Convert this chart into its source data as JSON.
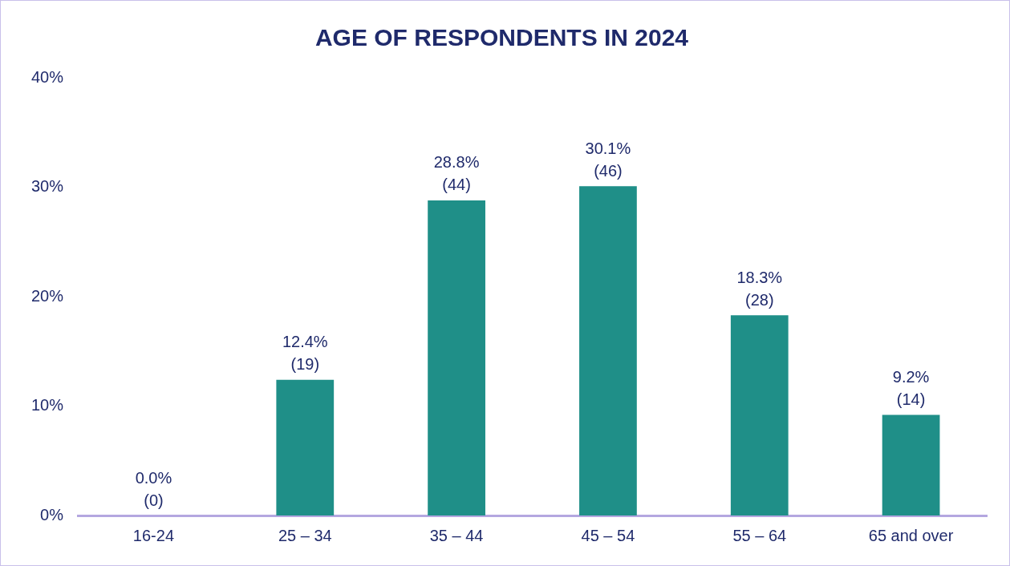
{
  "chart_data": {
    "type": "bar",
    "title": "AGE OF RESPONDENTS IN 2024",
    "categories": [
      "16-24",
      "25 – 34",
      "35 – 44",
      "45 – 54",
      "55 – 64",
      "65 and over"
    ],
    "values": [
      0,
      12.4,
      28.8,
      30.1,
      18.3,
      9.2
    ],
    "value_labels": [
      "0.0%\n(0)",
      "12.4%\n(19)",
      "28.8%\n(44)",
      "30.1%\n(46)",
      "18.3%\n(28)",
      "9.2%\n(14)"
    ],
    "color": "#1f8f88",
    "ylim": [
      0,
      40
    ],
    "yticks": [
      {
        "value": 0,
        "label": "0%"
      },
      {
        "value": 10,
        "label": "10%"
      },
      {
        "value": 20,
        "label": "20%"
      },
      {
        "value": 30,
        "label": "30%"
      },
      {
        "value": 40,
        "label": "40%"
      }
    ],
    "grid": false,
    "legend": false
  }
}
